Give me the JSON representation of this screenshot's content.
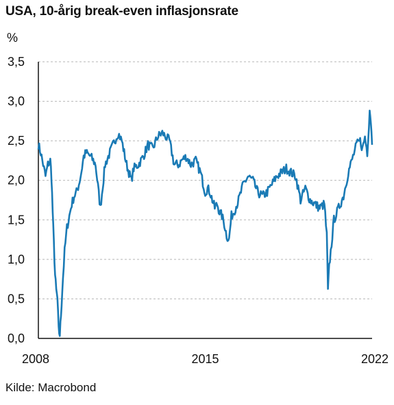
{
  "chart_data": {
    "type": "line",
    "title": "USA, 10-årig break-even inflasjonsrate",
    "ylabel": "%",
    "xlabel": "",
    "ylim": [
      0,
      3.5
    ],
    "xlim": [
      2008.0,
      2022.0
    ],
    "yticks": [
      "0,0",
      "0,5",
      "1,0",
      "1,5",
      "2,0",
      "2,5",
      "3,0",
      "3,5"
    ],
    "xticks": [
      "2008",
      "2015",
      "2022"
    ],
    "grid": "horizontal dashed",
    "line_color": "#1a7ab5",
    "series": [
      {
        "x": [
          2008.0,
          2008.1,
          2008.2,
          2008.3,
          2008.4,
          2008.5,
          2008.55,
          2008.6,
          2008.65,
          2008.7,
          2008.75,
          2008.8,
          2008.85,
          2008.9,
          2008.95,
          2009.0,
          2009.1,
          2009.2,
          2009.3,
          2009.4,
          2009.5,
          2009.6,
          2009.7,
          2009.8,
          2009.9,
          2010.0,
          2010.2,
          2010.4,
          2010.6,
          2010.8,
          2011.0,
          2011.2,
          2011.35,
          2011.5,
          2011.6,
          2011.7,
          2011.8,
          2011.9,
          2012.0,
          2012.2,
          2012.4,
          2012.6,
          2012.8,
          2013.0,
          2013.2,
          2013.35,
          2013.5,
          2013.7,
          2013.9,
          2014.0,
          2014.2,
          2014.4,
          2014.6,
          2014.8,
          2015.0,
          2015.1,
          2015.2,
          2015.3,
          2015.4,
          2015.5,
          2015.6,
          2015.7,
          2015.8,
          2015.9,
          2016.0,
          2016.1,
          2016.2,
          2016.4,
          2016.6,
          2016.8,
          2017.0,
          2017.2,
          2017.4,
          2017.6,
          2017.8,
          2018.0,
          2018.2,
          2018.4,
          2018.6,
          2018.8,
          2019.0,
          2019.2,
          2019.4,
          2019.6,
          2019.8,
          2020.0,
          2020.1,
          2020.15,
          2020.2,
          2020.3,
          2020.4,
          2020.6,
          2020.8,
          2021.0,
          2021.2,
          2021.35,
          2021.5,
          2021.6,
          2021.7,
          2021.8,
          2021.9,
          2021.95,
          2022.0
        ],
        "values": [
          2.45,
          2.35,
          2.2,
          2.05,
          2.2,
          2.25,
          2.05,
          1.6,
          1.2,
          0.8,
          0.6,
          0.5,
          0.1,
          0.05,
          0.3,
          0.6,
          1.1,
          1.4,
          1.55,
          1.7,
          1.8,
          1.85,
          1.95,
          2.1,
          2.3,
          2.35,
          2.3,
          2.2,
          1.65,
          2.2,
          2.35,
          2.5,
          2.6,
          2.5,
          2.35,
          2.2,
          2.1,
          2.0,
          2.15,
          2.2,
          2.3,
          2.45,
          2.4,
          2.55,
          2.6,
          2.55,
          2.5,
          2.2,
          2.2,
          2.25,
          2.3,
          2.2,
          2.25,
          2.1,
          1.85,
          1.9,
          1.85,
          1.75,
          1.65,
          1.7,
          1.6,
          1.55,
          1.45,
          1.3,
          1.25,
          1.55,
          1.6,
          1.75,
          1.95,
          2.05,
          2.0,
          1.85,
          1.8,
          1.85,
          1.95,
          2.05,
          2.1,
          2.15,
          2.1,
          2.05,
          1.75,
          1.9,
          1.75,
          1.7,
          1.65,
          1.7,
          1.3,
          0.6,
          0.9,
          1.2,
          1.5,
          1.65,
          1.8,
          2.1,
          2.3,
          2.45,
          2.5,
          2.4,
          2.55,
          2.35,
          2.9,
          2.75,
          2.45
        ]
      }
    ]
  },
  "source_label": "Kilde: Macrobond"
}
